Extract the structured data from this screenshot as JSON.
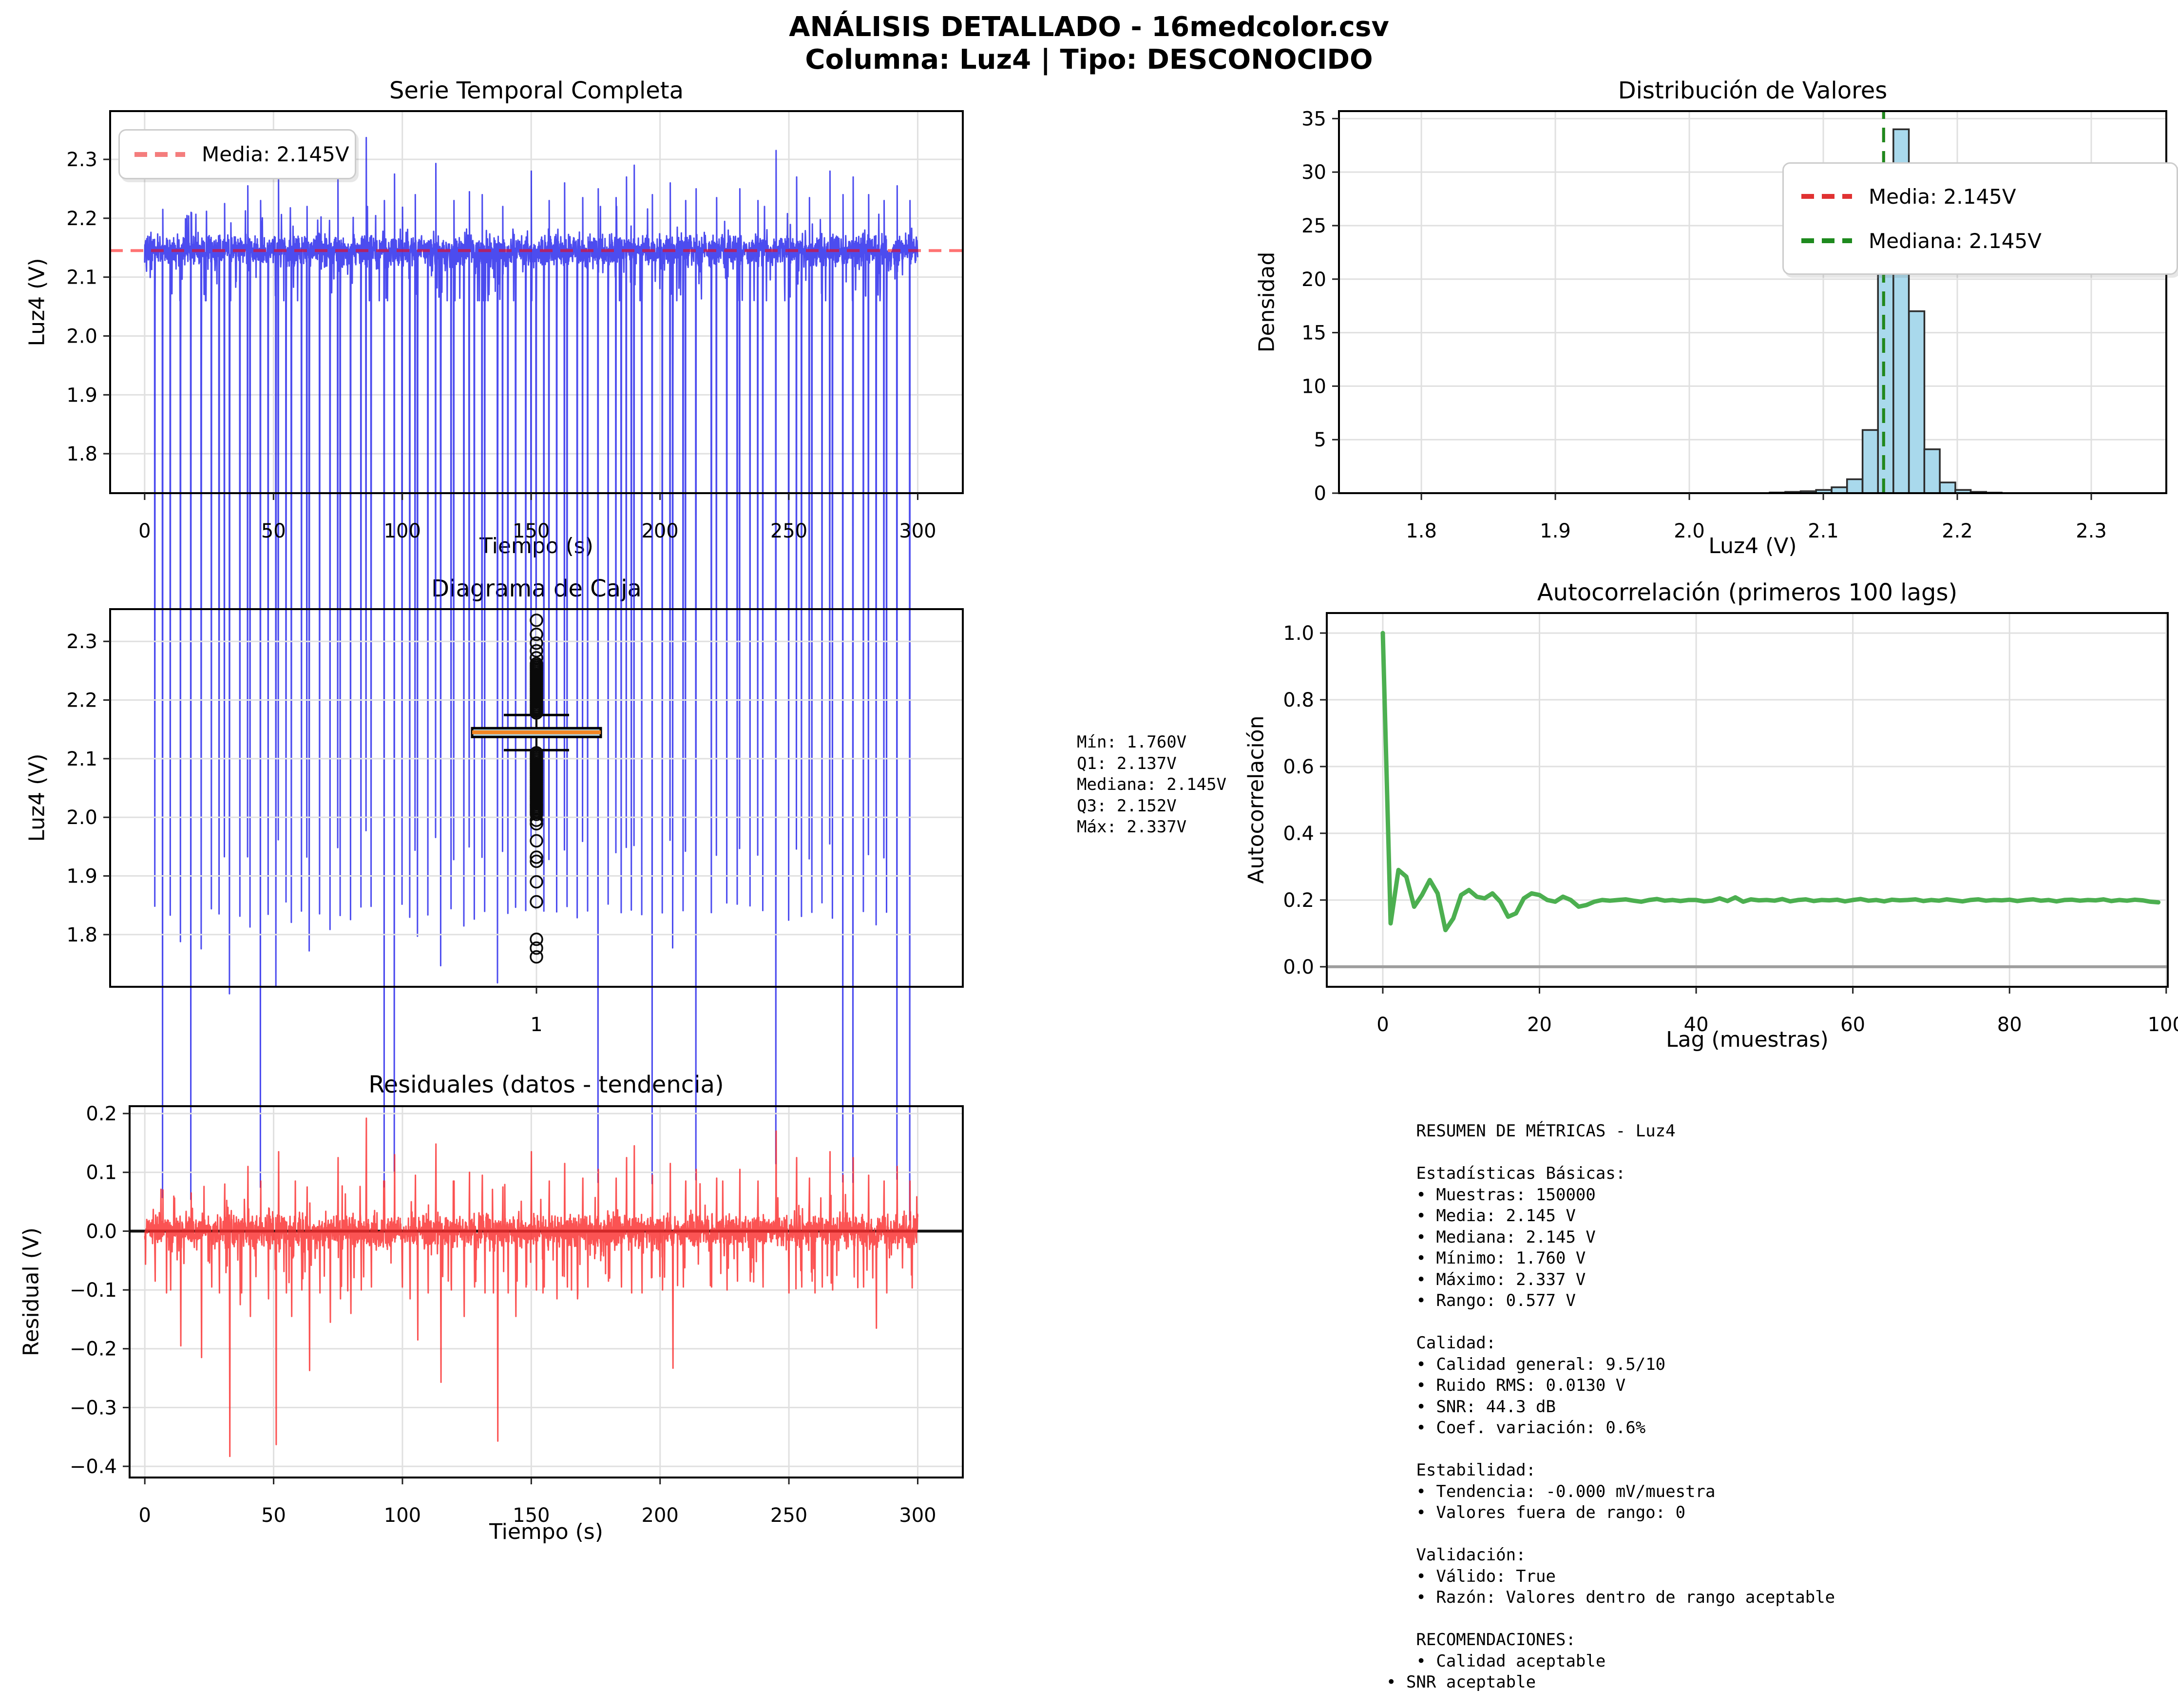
{
  "header": {
    "title_line1": "ANÁLISIS DETALLADO - 16medcolor.csv",
    "title_line2": "Columna: Luz4 | Tipo: DESCONOCIDO"
  },
  "colors": {
    "series_line": "rgba(25,25,235,0.78)",
    "mean_line": "rgba(255,0,0,0.55)",
    "legend_mean_sample": "#f47d7d",
    "hist_fill": "#a9d9ec",
    "hist_edge": "#2b2b2b",
    "hist_mean_line": "#e03232",
    "hist_median_line": "#1e8a1e",
    "box_fill": "#add8e6",
    "box_median": "#f28522",
    "acf_line": "#4caf50",
    "residual_line": "rgba(250,45,45,0.82)",
    "zero_line_gray": "#9e9e9e",
    "trend_line_black": "#111111",
    "grid": "#e0e0e0",
    "spine": "#000000"
  },
  "boxplot_stats": {
    "text": "Mín: 1.760V\nQ1: 2.137V\nMediana: 2.145V\nQ3: 2.152V\nMáx: 2.337V"
  },
  "metrics": {
    "text": "   RESUMEN DE MÉTRICAS - Luz4\n\n   Estadísticas Básicas:\n   • Muestras: 150000\n   • Media: 2.145 V\n   • Mediana: 2.145 V\n   • Mínimo: 1.760 V\n   • Máximo: 2.337 V\n   • Rango: 0.577 V\n\n   Calidad:\n   • Calidad general: 9.5/10\n   • Ruido RMS: 0.0130 V\n   • SNR: 44.3 dB\n   • Coef. variación: 0.6%\n\n   Estabilidad:\n   • Tendencia: -0.000 mV/muestra\n   • Valores fuera de rango: 0\n\n   Validación:\n   • Válido: True\n   • Razón: Valores dentro de rango aceptable\n\n   RECOMENDACIONES:\n   • Calidad aceptable\n• SNR aceptable"
  },
  "chart_data": [
    {
      "id": "series",
      "type": "line",
      "title": "Serie Temporal Completa",
      "xlabel": "Tiempo (s)",
      "ylabel": "Luz4 (V)",
      "xlim": [
        -13.4,
        317.5
      ],
      "ylim": [
        1.733,
        2.382
      ],
      "xticks": [
        {
          "v": 0,
          "label": "0"
        },
        {
          "v": 50,
          "label": "50"
        },
        {
          "v": 100,
          "label": "100"
        },
        {
          "v": 150,
          "label": "150"
        },
        {
          "v": 200,
          "label": "200"
        },
        {
          "v": 250,
          "label": "250"
        },
        {
          "v": 300,
          "label": "300"
        }
      ],
      "yticks": [
        {
          "v": 1.8,
          "label": "1.8"
        },
        {
          "v": 1.9,
          "label": "1.9"
        },
        {
          "v": 2.0,
          "label": "2.0"
        },
        {
          "v": 2.1,
          "label": "2.1"
        },
        {
          "v": 2.2,
          "label": "2.2"
        },
        {
          "v": 2.3,
          "label": "2.3"
        }
      ],
      "legend": [
        {
          "label": "Media: 2.145V"
        }
      ],
      "mean": 2.145,
      "baseline": 2.145,
      "noise_sigma": 0.013,
      "n_points": 3200,
      "duration": 300,
      "spikes_up": [
        [
          7,
          2.215
        ],
        [
          18,
          2.21
        ],
        [
          31,
          2.225
        ],
        [
          40,
          2.255
        ],
        [
          45,
          2.23
        ],
        [
          52,
          2.28
        ],
        [
          63,
          2.22
        ],
        [
          75,
          2.27
        ],
        [
          86,
          2.337
        ],
        [
          93,
          2.23
        ],
        [
          97,
          2.275
        ],
        [
          105,
          2.24
        ],
        [
          113,
          2.293
        ],
        [
          120,
          2.23
        ],
        [
          126,
          2.245
        ],
        [
          131,
          2.24
        ],
        [
          139,
          2.22
        ],
        [
          150,
          2.28
        ],
        [
          157,
          2.23
        ],
        [
          163,
          2.26
        ],
        [
          170,
          2.235
        ],
        [
          176,
          2.25
        ],
        [
          183,
          2.235
        ],
        [
          187,
          2.27
        ],
        [
          190,
          2.29
        ],
        [
          197,
          2.24
        ],
        [
          204,
          2.26
        ],
        [
          210,
          2.23
        ],
        [
          214,
          2.25
        ],
        [
          222,
          2.235
        ],
        [
          231,
          2.25
        ],
        [
          238,
          2.23
        ],
        [
          245,
          2.315
        ],
        [
          253,
          2.27
        ],
        [
          258,
          2.235
        ],
        [
          266,
          2.28
        ],
        [
          271,
          2.24
        ],
        [
          275,
          2.27
        ],
        [
          281,
          2.24
        ],
        [
          287,
          2.23
        ],
        [
          292,
          2.255
        ],
        [
          297,
          2.23
        ]
      ],
      "spikes_down": [
        [
          4,
          2.06
        ],
        [
          7,
          2.02
        ],
        [
          10,
          2.045
        ],
        [
          14,
          1.95
        ],
        [
          18,
          2.03
        ],
        [
          22,
          1.93
        ],
        [
          26,
          2.05
        ],
        [
          29,
          2.04
        ],
        [
          33,
          1.762
        ],
        [
          37,
          2.02
        ],
        [
          41,
          2.0
        ],
        [
          45,
          2.045
        ],
        [
          48,
          2.03
        ],
        [
          51,
          1.782
        ],
        [
          55,
          2.04
        ],
        [
          57,
          2.0
        ],
        [
          61,
          2.045
        ],
        [
          64,
          1.908
        ],
        [
          68,
          2.04
        ],
        [
          72,
          1.99
        ],
        [
          76,
          2.03
        ],
        [
          80,
          2.005
        ],
        [
          84,
          2.045
        ],
        [
          88,
          2.05
        ],
        [
          93,
          2.04
        ],
        [
          97,
          2.045
        ],
        [
          100,
          2.05
        ],
        [
          103,
          2.03
        ],
        [
          106,
          1.96
        ],
        [
          110,
          2.04
        ],
        [
          115,
          1.888
        ],
        [
          119,
          2.045
        ],
        [
          124,
          2.0
        ],
        [
          128,
          2.05
        ],
        [
          132,
          2.04
        ],
        [
          137,
          1.788
        ],
        [
          141,
          2.04
        ],
        [
          144,
          2.0
        ],
        [
          148,
          2.05
        ],
        [
          152,
          2.045
        ],
        [
          155,
          2.05
        ],
        [
          160,
          2.03
        ],
        [
          164,
          2.05
        ],
        [
          168,
          2.03
        ],
        [
          172,
          2.05
        ],
        [
          176,
          2.045
        ],
        [
          180,
          2.06
        ],
        [
          185,
          2.05
        ],
        [
          189,
          2.04
        ],
        [
          193,
          2.04
        ],
        [
          197,
          2.05
        ],
        [
          201,
          2.045
        ],
        [
          205,
          1.912
        ],
        [
          209,
          2.05
        ],
        [
          214,
          2.06
        ],
        [
          220,
          2.05
        ],
        [
          226,
          2.045
        ],
        [
          230,
          2.06
        ],
        [
          235,
          2.06
        ],
        [
          240,
          2.05
        ],
        [
          245,
          2.055
        ],
        [
          250,
          2.04
        ],
        [
          255,
          2.05
        ],
        [
          259,
          2.06
        ],
        [
          263,
          2.05
        ],
        [
          267,
          2.045
        ],
        [
          271,
          2.06
        ],
        [
          275,
          2.03
        ],
        [
          279,
          2.05
        ],
        [
          284,
          1.98
        ],
        [
          288,
          2.04
        ],
        [
          292,
          2.05
        ],
        [
          297,
          1.838
        ]
      ]
    },
    {
      "id": "hist",
      "type": "bar",
      "title": "Distribución de Valores",
      "xlabel": "Luz4 (V)",
      "ylabel": "Densidad",
      "xlim": [
        1.7385,
        2.356
      ],
      "ylim": [
        0,
        35.7
      ],
      "xticks": [
        {
          "v": 1.8,
          "label": "1.8"
        },
        {
          "v": 1.9,
          "label": "1.9"
        },
        {
          "v": 2.0,
          "label": "2.0"
        },
        {
          "v": 2.1,
          "label": "2.1"
        },
        {
          "v": 2.2,
          "label": "2.2"
        },
        {
          "v": 2.3,
          "label": "2.3"
        }
      ],
      "yticks": [
        {
          "v": 0,
          "label": "0"
        },
        {
          "v": 5,
          "label": "5"
        },
        {
          "v": 10,
          "label": "10"
        },
        {
          "v": 15,
          "label": "15"
        },
        {
          "v": 20,
          "label": "20"
        },
        {
          "v": 25,
          "label": "25"
        },
        {
          "v": 30,
          "label": "30"
        },
        {
          "v": 35,
          "label": "35"
        }
      ],
      "bin_width": 0.01154,
      "bins": [
        {
          "x": 2.06,
          "h": 0.06
        },
        {
          "x": 2.0716,
          "h": 0.12
        },
        {
          "x": 2.0831,
          "h": 0.18
        },
        {
          "x": 2.0946,
          "h": 0.3
        },
        {
          "x": 2.1062,
          "h": 0.55
        },
        {
          "x": 2.1177,
          "h": 1.3
        },
        {
          "x": 2.1293,
          "h": 5.9
        },
        {
          "x": 2.1408,
          "h": 23.3
        },
        {
          "x": 2.1523,
          "h": 34.0
        },
        {
          "x": 2.1639,
          "h": 17.0
        },
        {
          "x": 2.1754,
          "h": 4.1
        },
        {
          "x": 2.187,
          "h": 1.0
        },
        {
          "x": 2.1985,
          "h": 0.3
        },
        {
          "x": 2.21,
          "h": 0.12
        },
        {
          "x": 2.2216,
          "h": 0.05
        }
      ],
      "bins_note": "peak bar contains median 2.145; density axis",
      "mean": 2.145,
      "median": 2.145,
      "legend": [
        {
          "label": "Media: 2.145V"
        },
        {
          "label": "Mediana: 2.145V"
        }
      ]
    },
    {
      "id": "box",
      "type": "boxplot",
      "title": "Diagrama de Caja",
      "xlabel": "",
      "ylabel": "Luz4 (V)",
      "xlim": [
        0.5,
        1.5
      ],
      "ylim": [
        1.711,
        2.355
      ],
      "xticks": [
        {
          "v": 1,
          "label": "1"
        }
      ],
      "yticks": [
        {
          "v": 1.8,
          "label": "1.8"
        },
        {
          "v": 1.9,
          "label": "1.9"
        },
        {
          "v": 2.0,
          "label": "2.0"
        },
        {
          "v": 2.1,
          "label": "2.1"
        },
        {
          "v": 2.2,
          "label": "2.2"
        },
        {
          "v": 2.3,
          "label": "2.3"
        }
      ],
      "min": 1.76,
      "q1": 2.137,
      "median": 2.145,
      "q3": 2.152,
      "max": 2.337,
      "whisker_low": 2.1145,
      "whisker_high": 2.1745,
      "outliers_dense_high": {
        "from": 2.178,
        "to": 2.262,
        "step": 0.003
      },
      "outliers_dense_low": {
        "from": 2.005,
        "to": 2.111,
        "step": 0.003
      },
      "outliers_high": [
        2.272,
        2.284,
        2.297,
        2.312,
        2.336
      ],
      "outliers_low": [
        1.995,
        1.989,
        1.96,
        1.932,
        1.925,
        1.89,
        1.856,
        1.792,
        1.777,
        1.762
      ]
    },
    {
      "id": "acf",
      "type": "line",
      "title": "Autocorrelación (primeros 100 lags)",
      "xlabel": "Lag (muestras)",
      "ylabel": "Autocorrelación",
      "xlim": [
        -7.15,
        100.2
      ],
      "ylim": [
        -0.06,
        1.06
      ],
      "xticks": [
        {
          "v": 0,
          "label": "0"
        },
        {
          "v": 20,
          "label": "20"
        },
        {
          "v": 40,
          "label": "40"
        },
        {
          "v": 60,
          "label": "60"
        },
        {
          "v": 80,
          "label": "80"
        },
        {
          "v": 100,
          "label": "100"
        }
      ],
      "yticks": [
        {
          "v": 0.0,
          "label": "0.0"
        },
        {
          "v": 0.2,
          "label": "0.2"
        },
        {
          "v": 0.4,
          "label": "0.4"
        },
        {
          "v": 0.6,
          "label": "0.6"
        },
        {
          "v": 0.8,
          "label": "0.8"
        },
        {
          "v": 1.0,
          "label": "1.0"
        }
      ],
      "zero_line": 0,
      "values": [
        1.0,
        0.13,
        0.29,
        0.27,
        0.18,
        0.215,
        0.26,
        0.22,
        0.11,
        0.145,
        0.215,
        0.23,
        0.21,
        0.205,
        0.22,
        0.195,
        0.15,
        0.16,
        0.205,
        0.22,
        0.215,
        0.2,
        0.195,
        0.21,
        0.2,
        0.18,
        0.185,
        0.195,
        0.2,
        0.198,
        0.2,
        0.202,
        0.198,
        0.195,
        0.2,
        0.203,
        0.198,
        0.2,
        0.197,
        0.2,
        0.2,
        0.196,
        0.198,
        0.205,
        0.197,
        0.208,
        0.195,
        0.202,
        0.199,
        0.2,
        0.198,
        0.203,
        0.196,
        0.2,
        0.202,
        0.197,
        0.2,
        0.199,
        0.201,
        0.196,
        0.2,
        0.203,
        0.198,
        0.2,
        0.196,
        0.201,
        0.199,
        0.2,
        0.202,
        0.197,
        0.2,
        0.198,
        0.202,
        0.199,
        0.196,
        0.2,
        0.202,
        0.198,
        0.2,
        0.199,
        0.201,
        0.197,
        0.2,
        0.202,
        0.198,
        0.2,
        0.196,
        0.2,
        0.201,
        0.198,
        0.2,
        0.199,
        0.202,
        0.197,
        0.2,
        0.198,
        0.201,
        0.199,
        0.195,
        0.193
      ]
    },
    {
      "id": "res",
      "type": "line",
      "title": "Residuales (datos - tendencia)",
      "xlabel": "Tiempo (s)",
      "ylabel": "Residual (V)",
      "xlim": [
        -5.9,
        317.5
      ],
      "ylim": [
        -0.419,
        0.2125
      ],
      "xticks": [
        {
          "v": 0,
          "label": "0"
        },
        {
          "v": 50,
          "label": "50"
        },
        {
          "v": 100,
          "label": "100"
        },
        {
          "v": 150,
          "label": "150"
        },
        {
          "v": 200,
          "label": "200"
        },
        {
          "v": 250,
          "label": "250"
        },
        {
          "v": 300,
          "label": "300"
        }
      ],
      "yticks": [
        {
          "v": 0.2,
          "label": "0.2"
        },
        {
          "v": 0.1,
          "label": "0.1"
        },
        {
          "v": 0.0,
          "label": "0.0"
        },
        {
          "v": -0.1,
          "label": "−0.1"
        },
        {
          "v": -0.2,
          "label": "−0.2"
        },
        {
          "v": -0.3,
          "label": "−0.3"
        },
        {
          "v": -0.4,
          "label": "−0.4"
        }
      ],
      "baseline": 0.0,
      "trend": 0.0,
      "noise_sigma": 0.013,
      "n_points": 3200,
      "duration": 300,
      "derived_from_series_minus_trend": 2.145
    }
  ]
}
